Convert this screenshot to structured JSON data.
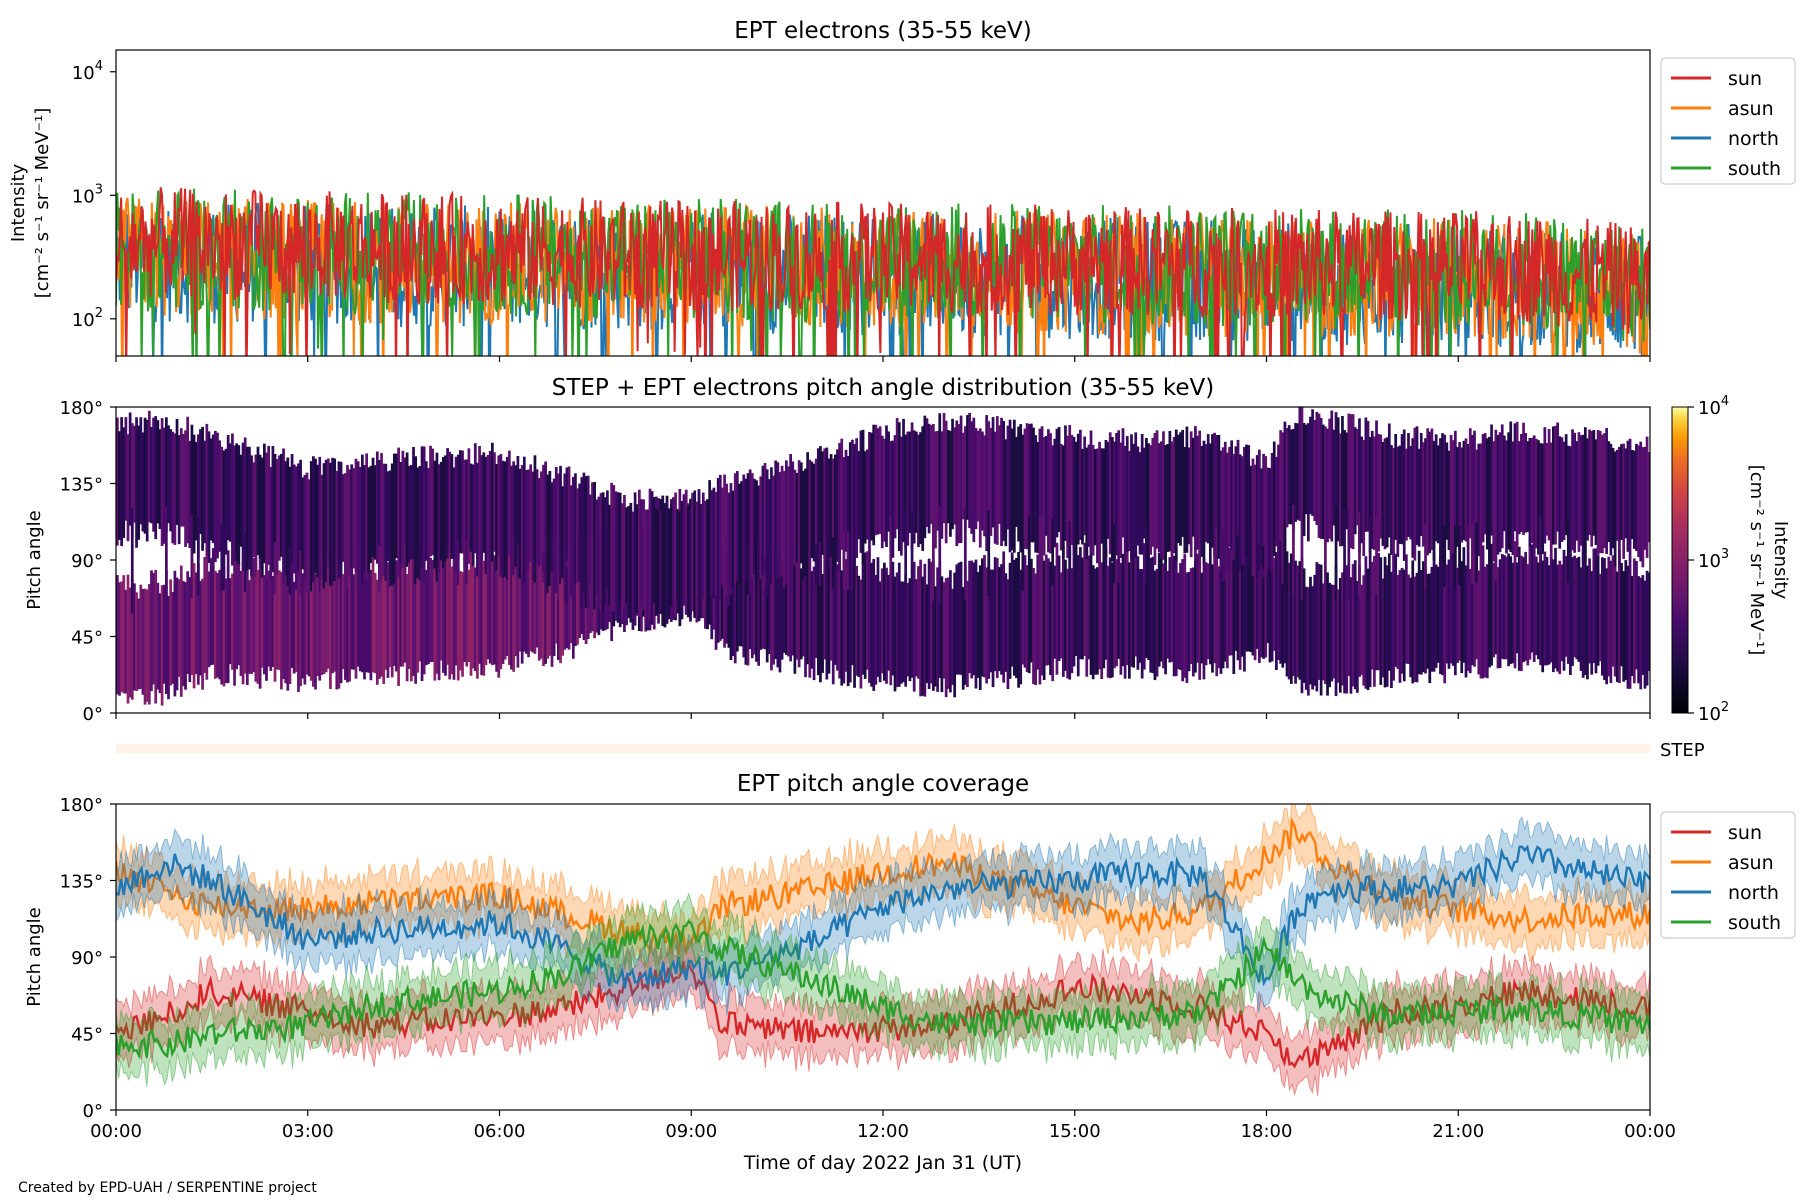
{
  "footer": "Created by EPD-UAH / SERPENTINE project",
  "xaxis": {
    "ticks": [
      "00:00",
      "03:00",
      "06:00",
      "09:00",
      "12:00",
      "15:00",
      "18:00",
      "21:00",
      "00:00"
    ],
    "label": "Time of day 2022 Jan 31 (UT)"
  },
  "series_colors": {
    "sun": "#d62728",
    "asun": "#ff7f0e",
    "north": "#1f77b4",
    "south": "#2ca02c"
  },
  "chart_data": [
    {
      "type": "line",
      "title": "EPT electrons (35-55 keV)",
      "ylabel_line1": "Intensity",
      "ylabel_line2": "[cm⁻² s⁻¹ sr⁻¹ MeV⁻¹]",
      "yscale": "log",
      "ylim": [
        50,
        15000
      ],
      "yticks": [
        {
          "value": 100,
          "exp": "2"
        },
        {
          "value": 1000,
          "exp": "3"
        },
        {
          "value": 10000,
          "exp": "4"
        }
      ],
      "xlim_hours": [
        0,
        24
      ],
      "legend": "top-right outside",
      "series": [
        {
          "name": "sun",
          "hours": [
            0,
            2,
            4,
            6,
            8,
            10,
            12,
            14,
            16,
            18,
            20,
            22,
            24
          ],
          "median": [
            420,
            400,
            380,
            360,
            330,
            320,
            310,
            300,
            290,
            280,
            270,
            260,
            200
          ]
        },
        {
          "name": "asun",
          "hours": [
            0,
            2,
            4,
            6,
            8,
            10,
            12,
            14,
            16,
            18,
            20,
            22,
            24
          ],
          "median": [
            320,
            300,
            290,
            280,
            270,
            260,
            250,
            240,
            230,
            220,
            210,
            200,
            160
          ]
        },
        {
          "name": "north",
          "hours": [
            0,
            2,
            4,
            6,
            8,
            10,
            12,
            14,
            16,
            18,
            20,
            22,
            24
          ],
          "median": [
            300,
            280,
            270,
            260,
            250,
            240,
            230,
            220,
            210,
            200,
            190,
            180,
            150
          ]
        },
        {
          "name": "south",
          "hours": [
            0,
            2,
            4,
            6,
            8,
            10,
            12,
            14,
            16,
            18,
            20,
            22,
            24
          ],
          "median": [
            360,
            360,
            340,
            330,
            310,
            300,
            290,
            280,
            270,
            260,
            250,
            240,
            190
          ]
        }
      ]
    },
    {
      "type": "heatmap",
      "title": "STEP + EPT electrons pitch angle distribution (35-55 keV)",
      "ylabel": "Pitch angle",
      "ylim": [
        0,
        180
      ],
      "yticks": [
        "0°",
        "45°",
        "90°",
        "135°",
        "180°"
      ],
      "colorbar": {
        "label_line1": "Intensity",
        "label_line2": "[cm⁻² s⁻¹ sr⁻¹ MeV⁻¹]",
        "scale": "log",
        "range": [
          100,
          10000
        ],
        "ticks": [
          {
            "value": 100,
            "exp": "2"
          },
          {
            "value": 1000,
            "exp": "3"
          },
          {
            "value": 10000,
            "exp": "4"
          }
        ],
        "colormap": "inferno"
      },
      "step_label": "STEP"
    },
    {
      "type": "line",
      "title": "EPT pitch angle coverage",
      "ylabel": "Pitch angle",
      "ylim": [
        0,
        180
      ],
      "yticks": [
        "0°",
        "45°",
        "90°",
        "135°",
        "180°"
      ],
      "legend": "top-right outside",
      "series": [
        {
          "name": "sun",
          "hours": [
            0,
            0.8,
            1.5,
            3,
            4,
            6,
            7,
            8,
            9,
            9.5,
            11,
            12,
            13,
            15,
            16,
            17,
            18,
            18.5,
            19,
            20,
            21,
            22,
            23,
            24
          ],
          "values": [
            45,
            55,
            70,
            58,
            50,
            55,
            60,
            72,
            85,
            50,
            45,
            48,
            50,
            72,
            68,
            60,
            45,
            28,
            35,
            58,
            62,
            70,
            66,
            58
          ]
        },
        {
          "name": "asun",
          "hours": [
            0,
            0.8,
            1.5,
            3,
            4,
            6,
            7,
            8,
            9,
            9.5,
            11,
            12,
            13,
            15,
            16,
            17,
            18,
            18.5,
            19,
            20,
            21,
            22,
            23,
            24
          ],
          "values": [
            140,
            128,
            120,
            118,
            122,
            126,
            115,
            105,
            95,
            120,
            130,
            140,
            145,
            120,
            110,
            118,
            150,
            165,
            145,
            125,
            118,
            112,
            115,
            115
          ]
        },
        {
          "name": "north",
          "hours": [
            0,
            0.8,
            1.5,
            3,
            4,
            6,
            7,
            8,
            9,
            9.5,
            11,
            12,
            13,
            15,
            16,
            17,
            18,
            18.5,
            19,
            20,
            21,
            22,
            23,
            24
          ],
          "values": [
            130,
            145,
            135,
            100,
            105,
            110,
            95,
            75,
            85,
            80,
            100,
            120,
            130,
            135,
            140,
            138,
            75,
            120,
            130,
            130,
            132,
            150,
            140,
            132
          ]
        },
        {
          "name": "south",
          "hours": [
            0,
            0.8,
            1.5,
            3,
            4,
            6,
            7,
            8,
            9,
            9.5,
            11,
            12,
            13,
            15,
            16,
            17,
            18,
            18.5,
            19,
            20,
            21,
            22,
            23,
            24
          ],
          "values": [
            40,
            38,
            45,
            50,
            62,
            70,
            80,
            100,
            105,
            95,
            75,
            60,
            50,
            52,
            55,
            58,
            95,
            75,
            65,
            55,
            58,
            60,
            55,
            50
          ]
        }
      ]
    }
  ]
}
